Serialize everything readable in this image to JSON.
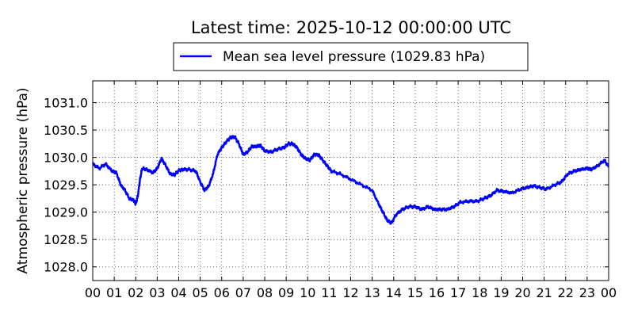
{
  "chart_data": {
    "type": "line",
    "title": "Latest time: 2025-10-12 00:00:00 UTC",
    "xlabel": "",
    "ylabel": "Atmospheric pressure (hPa)",
    "ylim": [
      1027.75,
      1031.4
    ],
    "xlim": [
      0,
      24
    ],
    "grid": true,
    "legend_position": "top-center",
    "line_color": "#0000ff",
    "x_tick_labels": [
      "00",
      "01",
      "02",
      "03",
      "04",
      "05",
      "06",
      "07",
      "08",
      "09",
      "10",
      "11",
      "12",
      "13",
      "14",
      "15",
      "16",
      "17",
      "18",
      "19",
      "20",
      "21",
      "22",
      "23",
      "00"
    ],
    "y_ticks": [
      1028.0,
      1028.5,
      1029.0,
      1029.5,
      1030.0,
      1030.5,
      1031.0
    ],
    "y_tick_labels": [
      "1028.0",
      "1028.5",
      "1029.0",
      "1029.5",
      "1030.0",
      "1030.5",
      "1031.0"
    ],
    "series": [
      {
        "name": "Mean sea level pressure (1029.83 hPa)",
        "x": [
          0,
          0.3,
          0.6,
          0.9,
          1.1,
          1.3,
          1.5,
          1.7,
          1.9,
          2.0,
          2.1,
          2.2,
          2.3,
          2.5,
          2.8,
          3.0,
          3.2,
          3.4,
          3.6,
          3.8,
          4.0,
          4.2,
          4.5,
          4.8,
          5.0,
          5.2,
          5.4,
          5.6,
          5.8,
          6.0,
          6.2,
          6.4,
          6.6,
          6.8,
          7.0,
          7.2,
          7.4,
          7.6,
          7.8,
          8.0,
          8.3,
          8.6,
          8.9,
          9.1,
          9.3,
          9.5,
          9.7,
          9.9,
          10.1,
          10.3,
          10.5,
          10.7,
          10.9,
          11.1,
          11.5,
          12.0,
          12.5,
          13.0,
          13.3,
          13.5,
          13.7,
          13.9,
          14.1,
          14.4,
          14.7,
          15.0,
          15.3,
          15.6,
          15.9,
          16.2,
          16.5,
          16.8,
          17.1,
          17.5,
          17.9,
          18.2,
          18.5,
          18.8,
          19.1,
          19.5,
          19.9,
          20.2,
          20.5,
          20.8,
          21.1,
          21.5,
          21.8,
          22.1,
          22.4,
          22.7,
          23.0,
          23.2,
          23.5,
          23.8,
          24.0
        ],
        "values": [
          1029.88,
          1029.8,
          1029.88,
          1029.75,
          1029.72,
          1029.5,
          1029.4,
          1029.25,
          1029.22,
          1029.15,
          1029.3,
          1029.6,
          1029.8,
          1029.78,
          1029.72,
          1029.8,
          1029.98,
          1029.85,
          1029.7,
          1029.68,
          1029.76,
          1029.78,
          1029.78,
          1029.75,
          1029.55,
          1029.4,
          1029.48,
          1029.7,
          1030.05,
          1030.18,
          1030.28,
          1030.36,
          1030.38,
          1030.25,
          1030.05,
          1030.1,
          1030.2,
          1030.2,
          1030.22,
          1030.12,
          1030.1,
          1030.15,
          1030.18,
          1030.25,
          1030.25,
          1030.18,
          1030.05,
          1029.98,
          1029.95,
          1030.05,
          1030.05,
          1029.95,
          1029.85,
          1029.75,
          1029.7,
          1029.6,
          1029.5,
          1029.4,
          1029.15,
          1029.0,
          1028.85,
          1028.8,
          1028.95,
          1029.05,
          1029.1,
          1029.1,
          1029.05,
          1029.1,
          1029.05,
          1029.05,
          1029.05,
          1029.1,
          1029.18,
          1029.2,
          1029.2,
          1029.25,
          1029.3,
          1029.4,
          1029.38,
          1029.35,
          1029.42,
          1029.45,
          1029.48,
          1029.45,
          1029.42,
          1029.5,
          1029.55,
          1029.7,
          1029.75,
          1029.78,
          1029.8,
          1029.78,
          1029.85,
          1029.95,
          1029.83
        ]
      }
    ]
  }
}
